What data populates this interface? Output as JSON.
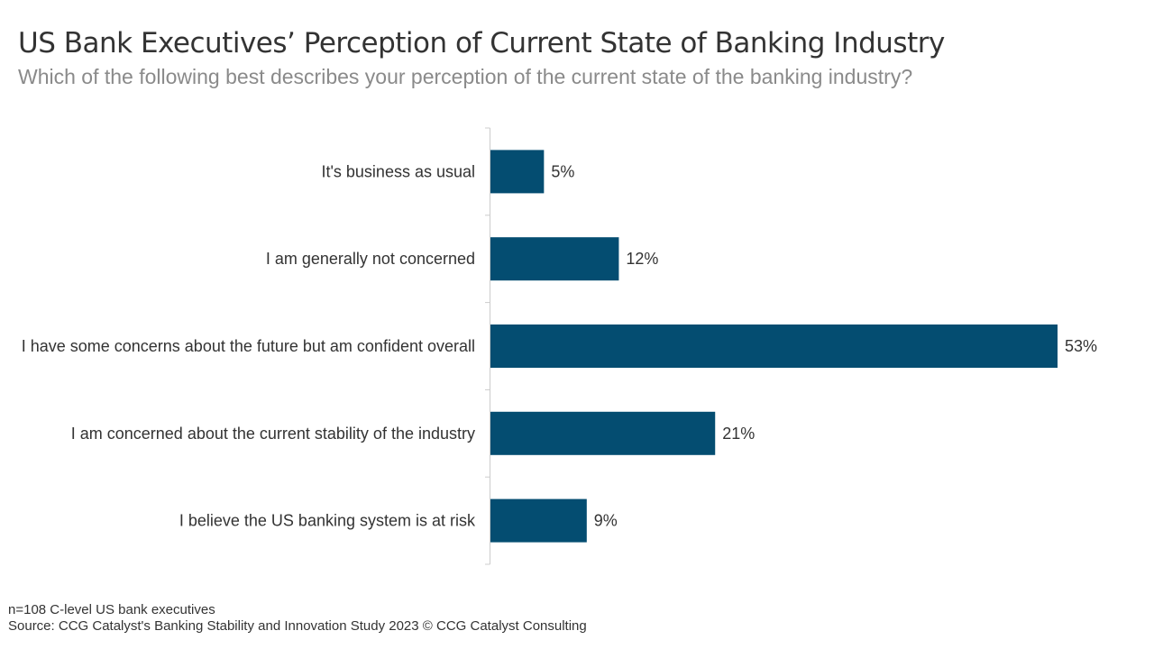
{
  "title": "US Bank Executives’ Perception of Current State of Banking Industry",
  "subtitle": "Which of the following best describes your perception of the current state of the banking industry?",
  "footer": {
    "note": "n=108 C-level US bank executives",
    "source": "Source: CCG Catalyst's Banking Stability and Innovation Study 2023 © CCG Catalyst Consulting"
  },
  "colors": {
    "bar": "#044d71",
    "axis": "#cccccc",
    "label": "#333333"
  },
  "chart_data": {
    "type": "bar",
    "orientation": "horizontal",
    "categories": [
      "It's business as usual",
      "I am generally not concerned",
      "I have some concerns about the future but am confident overall",
      "I am concerned about the current stability of the industry",
      "I believe the US banking system is at risk"
    ],
    "values": [
      5,
      12,
      53,
      21,
      9
    ],
    "data_labels": [
      "5%",
      "12%",
      "53%",
      "21%",
      "9%"
    ],
    "unit": "%",
    "xlim": [
      0,
      60
    ],
    "grid": false,
    "legend": "none"
  }
}
